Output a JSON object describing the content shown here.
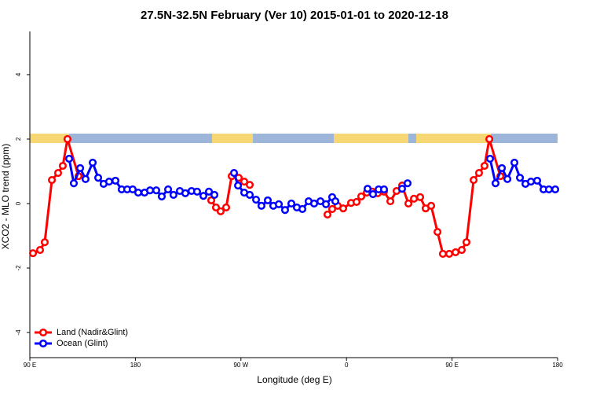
{
  "chart_data": {
    "type": "line",
    "title": "27.5N-32.5N February (Ver 10)   2015-01-01 to 2020-12-18",
    "x_label": "Longitude (deg E)",
    "y_label": "XCO2 - MLO trend (ppm)",
    "xlim": [
      90,
      540
    ],
    "ylim": [
      -4.78,
      5.34
    ],
    "xticks": [
      {
        "value": 90,
        "label": "90 E"
      },
      180,
      {
        "value": 270,
        "label": "90 W"
      },
      {
        "value": 360,
        "label": "0"
      },
      {
        "value": 450,
        "label": "90 E"
      },
      {
        "value": 540,
        "label": "180"
      }
    ],
    "yticks": [
      -4,
      -2,
      0,
      2,
      4
    ],
    "legend": "bottom-left",
    "series": [
      {
        "name": "Land (Nadir&Glint)",
        "color": "#ff0000",
        "x": [
          92.7,
          98.7,
          102.7,
          108.8,
          114.1,
          118.1,
          122.1,
          131.5,
          null,
          244.7,
          248.7,
          252.7,
          257.4,
          262.1,
          268.1,
          272.8,
          277.5,
          null,
          343.8,
          347.8,
          352.5,
          357.2,
          363.9,
          368.6,
          372.6,
          377.3,
          382,
          386.7,
          392,
          397.4,
          402.7,
          407.4,
          412.8,
          417.5,
          422.8,
          427.5,
          432.2,
          437.6,
          442.2,
          447.6,
          453,
          458.3,
          462.3,
          468.4,
          473,
          477.7,
          481.8,
          491.2
        ],
        "values": [
          -1.54,
          -1.44,
          -1.2,
          0.73,
          0.95,
          1.17,
          2.0,
          0.85,
          null,
          0.1,
          -0.12,
          -0.24,
          -0.12,
          0.85,
          0.8,
          0.68,
          0.58,
          null,
          -0.34,
          -0.17,
          -0.07,
          -0.15,
          0.02,
          0.05,
          0.22,
          0.34,
          0.37,
          0.32,
          0.37,
          0.07,
          0.39,
          0.56,
          0,
          0.15,
          0.2,
          -0.15,
          -0.07,
          -0.88,
          -1.56,
          -1.56,
          -1.51,
          -1.44,
          -1.2,
          0.73,
          0.95,
          1.17,
          2.0,
          0.85
        ]
      },
      {
        "name": "Ocean (Glint)",
        "color": "#0000ff",
        "x": [
          123.5,
          127.5,
          132.9,
          137.5,
          143.6,
          148.3,
          152.9,
          157.6,
          163,
          168.3,
          173,
          177.7,
          182.4,
          187.8,
          192.5,
          197.8,
          202.5,
          207.9,
          212.5,
          217.9,
          222.6,
          227.9,
          232.6,
          238,
          242.7,
          247.4,
          null,
          264.1,
          267.5,
          272.8,
          277.5,
          282.9,
          287.5,
          292.9,
          297.6,
          302.3,
          307.6,
          313,
          317.7,
          322.4,
          327.7,
          332.4,
          337.8,
          342.5,
          347.8,
          350.5,
          null,
          378,
          382.6,
          387.4,
          392,
          null,
          407.4,
          412.1,
          null,
          482.4,
          487.1,
          492.5,
          497.2,
          503.2,
          507.9,
          512.6,
          517.3,
          522.6,
          528,
          532.6,
          538
        ],
        "values": [
          1.39,
          0.63,
          1.1,
          0.76,
          1.27,
          0.8,
          0.61,
          0.68,
          0.71,
          0.44,
          0.44,
          0.44,
          0.34,
          0.34,
          0.41,
          0.41,
          0.22,
          0.44,
          0.27,
          0.39,
          0.32,
          0.39,
          0.37,
          0.24,
          0.37,
          0.27,
          null,
          0.95,
          0.56,
          0.34,
          0.27,
          0.12,
          -0.07,
          0.1,
          -0.07,
          -0.02,
          -0.2,
          0,
          -0.12,
          -0.17,
          0.07,
          0,
          0.07,
          -0.02,
          0.2,
          0.07,
          null,
          0.46,
          0.29,
          0.44,
          0.44,
          null,
          0.46,
          0.63,
          null,
          1.39,
          0.63,
          1.1,
          0.76,
          1.27,
          0.8,
          0.61,
          0.68,
          0.71,
          0.44,
          0.44,
          0.44
        ]
      }
    ]
  }
}
